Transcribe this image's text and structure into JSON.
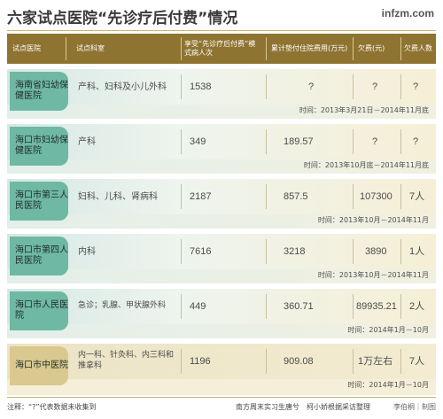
{
  "title": "六家试点医院“先诊疗后付费”情况",
  "site": "infzm.com",
  "headers": {
    "hospital": "试点医院",
    "dept": "试点科室",
    "patients": "享受“先诊疗后付费”模式病人次",
    "cost": "累计垫付住院费用(万元)",
    "owed": "欠费(元)",
    "owers": "欠费人数"
  },
  "rows": [
    {
      "hospital": "海南省妇幼保健医院",
      "dept": "产科、妇科及小儿外科",
      "patients": "1538",
      "cost": "?",
      "owed": "?",
      "owers": "?",
      "time": "时间：2013年3月21日－2014年11月底"
    },
    {
      "hospital": "海口市妇幼保健医院",
      "dept": "产科",
      "patients": "349",
      "cost": "189.57",
      "owed": "?",
      "owers": "?",
      "time": "时间：2013年10月底－2014年11月底"
    },
    {
      "hospital": "海口市第三人民医院",
      "dept": "妇科、儿科、肾病科",
      "patients": "2187",
      "cost": "857.5",
      "owed": "107300",
      "owers": "7人",
      "time": "时间：2013年10月－2014年11月"
    },
    {
      "hospital": "海口市第四人民医院",
      "dept": "内科",
      "patients": "7616",
      "cost": "3218",
      "owed": "3890",
      "owers": "1人",
      "time": "时间：2013年10月－2014年11月"
    },
    {
      "hospital": "海口市人民医院",
      "dept": "急诊；乳腺、甲状腺外科",
      "patients": "449",
      "cost": "360.71",
      "owed": "89935.21",
      "owers": "2人",
      "time": "时间：2014年1月－10月"
    },
    {
      "hospital": "海口市中医院",
      "dept": "内一科、针灸科、内三科和推拿科",
      "patients": "1196",
      "cost": "909.08",
      "owed": "1万左右",
      "owers": "7人",
      "time": "时间：2014年1月－10月"
    }
  ],
  "footer": {
    "note": "注释：“?”代表数据未收集到",
    "credit": "南方周末实习生唐兮　柯小娇根据采访整理",
    "design": "李伯桐｜制图"
  },
  "colors": {
    "header": "#8f7330",
    "teal": "#6fb8a4",
    "gold": "#d9c98f"
  }
}
